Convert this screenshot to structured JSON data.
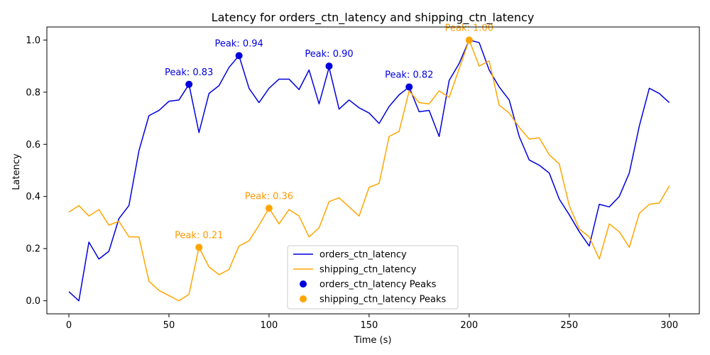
{
  "chart_data": {
    "type": "line",
    "title": "Latency for orders_ctn_latency and shipping_ctn_latency",
    "xlabel": "Time (s)",
    "ylabel": "Latency",
    "xlim": [
      -11,
      315
    ],
    "ylim": [
      -0.05,
      1.05
    ],
    "xticks": [
      0,
      50,
      100,
      150,
      200,
      250,
      300
    ],
    "yticks": [
      0.0,
      0.2,
      0.4,
      0.6,
      0.8,
      1.0
    ],
    "xtick_labels": [
      "0",
      "50",
      "100",
      "150",
      "200",
      "250",
      "300"
    ],
    "ytick_labels": [
      "0.0",
      "0.2",
      "0.4",
      "0.6",
      "0.8",
      "1.0"
    ],
    "grid": false,
    "legend_position": "lower-center",
    "x": [
      0,
      5,
      10,
      15,
      20,
      25,
      30,
      35,
      40,
      45,
      50,
      55,
      60,
      65,
      70,
      75,
      80,
      85,
      90,
      95,
      100,
      105,
      110,
      115,
      120,
      125,
      130,
      135,
      140,
      145,
      150,
      155,
      160,
      165,
      170,
      175,
      180,
      185,
      190,
      195,
      200,
      205,
      210,
      215,
      220,
      225,
      230,
      235,
      240,
      245,
      250,
      255,
      260,
      265,
      270,
      275,
      280,
      285,
      290,
      295,
      300
    ],
    "series": [
      {
        "name": "orders_ctn_latency",
        "color": "#0000dd",
        "values": [
          0.035,
          0.0,
          0.225,
          0.16,
          0.19,
          0.315,
          0.365,
          0.575,
          0.71,
          0.73,
          0.765,
          0.77,
          0.83,
          0.645,
          0.795,
          0.825,
          0.895,
          0.94,
          0.815,
          0.76,
          0.815,
          0.85,
          0.85,
          0.81,
          0.885,
          0.755,
          0.895,
          0.735,
          0.77,
          0.74,
          0.72,
          0.68,
          0.745,
          0.79,
          0.82,
          0.725,
          0.73,
          0.63,
          0.845,
          0.91,
          1.0,
          0.99,
          0.885,
          0.82,
          0.77,
          0.63,
          0.54,
          0.52,
          0.49,
          0.39,
          0.33,
          0.265,
          0.21,
          0.37,
          0.36,
          0.4,
          0.49,
          0.67,
          0.815,
          0.795,
          0.76
        ]
      },
      {
        "name": "shipping_ctn_latency",
        "color": "#ffa500",
        "values": [
          0.34,
          0.365,
          0.325,
          0.35,
          0.29,
          0.305,
          0.245,
          0.245,
          0.075,
          0.04,
          0.02,
          0.0,
          0.025,
          0.205,
          0.13,
          0.1,
          0.12,
          0.21,
          0.23,
          0.29,
          0.355,
          0.295,
          0.35,
          0.325,
          0.245,
          0.28,
          0.38,
          0.395,
          0.36,
          0.325,
          0.435,
          0.45,
          0.63,
          0.65,
          0.805,
          0.76,
          0.755,
          0.805,
          0.78,
          0.89,
          1.0,
          0.9,
          0.92,
          0.75,
          0.72,
          0.665,
          0.62,
          0.625,
          0.56,
          0.525,
          0.365,
          0.275,
          0.245,
          0.16,
          0.295,
          0.265,
          0.205,
          0.335,
          0.37,
          0.375,
          0.44
        ]
      }
    ],
    "peaks": [
      {
        "series": "orders_ctn_latency",
        "color": "#0000dd",
        "label_color": "#0000dd",
        "points": [
          {
            "x": 60,
            "y": 0.83,
            "label": "Peak: 0.83"
          },
          {
            "x": 85,
            "y": 0.94,
            "label": "Peak: 0.94"
          },
          {
            "x": 130,
            "y": 0.9,
            "label": "Peak: 0.90"
          },
          {
            "x": 170,
            "y": 0.82,
            "label": "Peak: 0.82"
          }
        ]
      },
      {
        "series": "shipping_ctn_latency",
        "color": "#ffa500",
        "label_color": "#ff9900",
        "points": [
          {
            "x": 65,
            "y": 0.205,
            "label": "Peak: 0.21"
          },
          {
            "x": 100,
            "y": 0.355,
            "label": "Peak: 0.36"
          },
          {
            "x": 200,
            "y": 1.0,
            "label": "Peak: 1.00"
          }
        ]
      }
    ],
    "legend": [
      {
        "label": "orders_ctn_latency",
        "kind": "line",
        "color": "#0000dd"
      },
      {
        "label": "shipping_ctn_latency",
        "kind": "line",
        "color": "#ffa500"
      },
      {
        "label": "orders_ctn_latency Peaks",
        "kind": "marker",
        "color": "#0000dd"
      },
      {
        "label": "shipping_ctn_latency Peaks",
        "kind": "marker",
        "color": "#ffa500"
      }
    ]
  }
}
